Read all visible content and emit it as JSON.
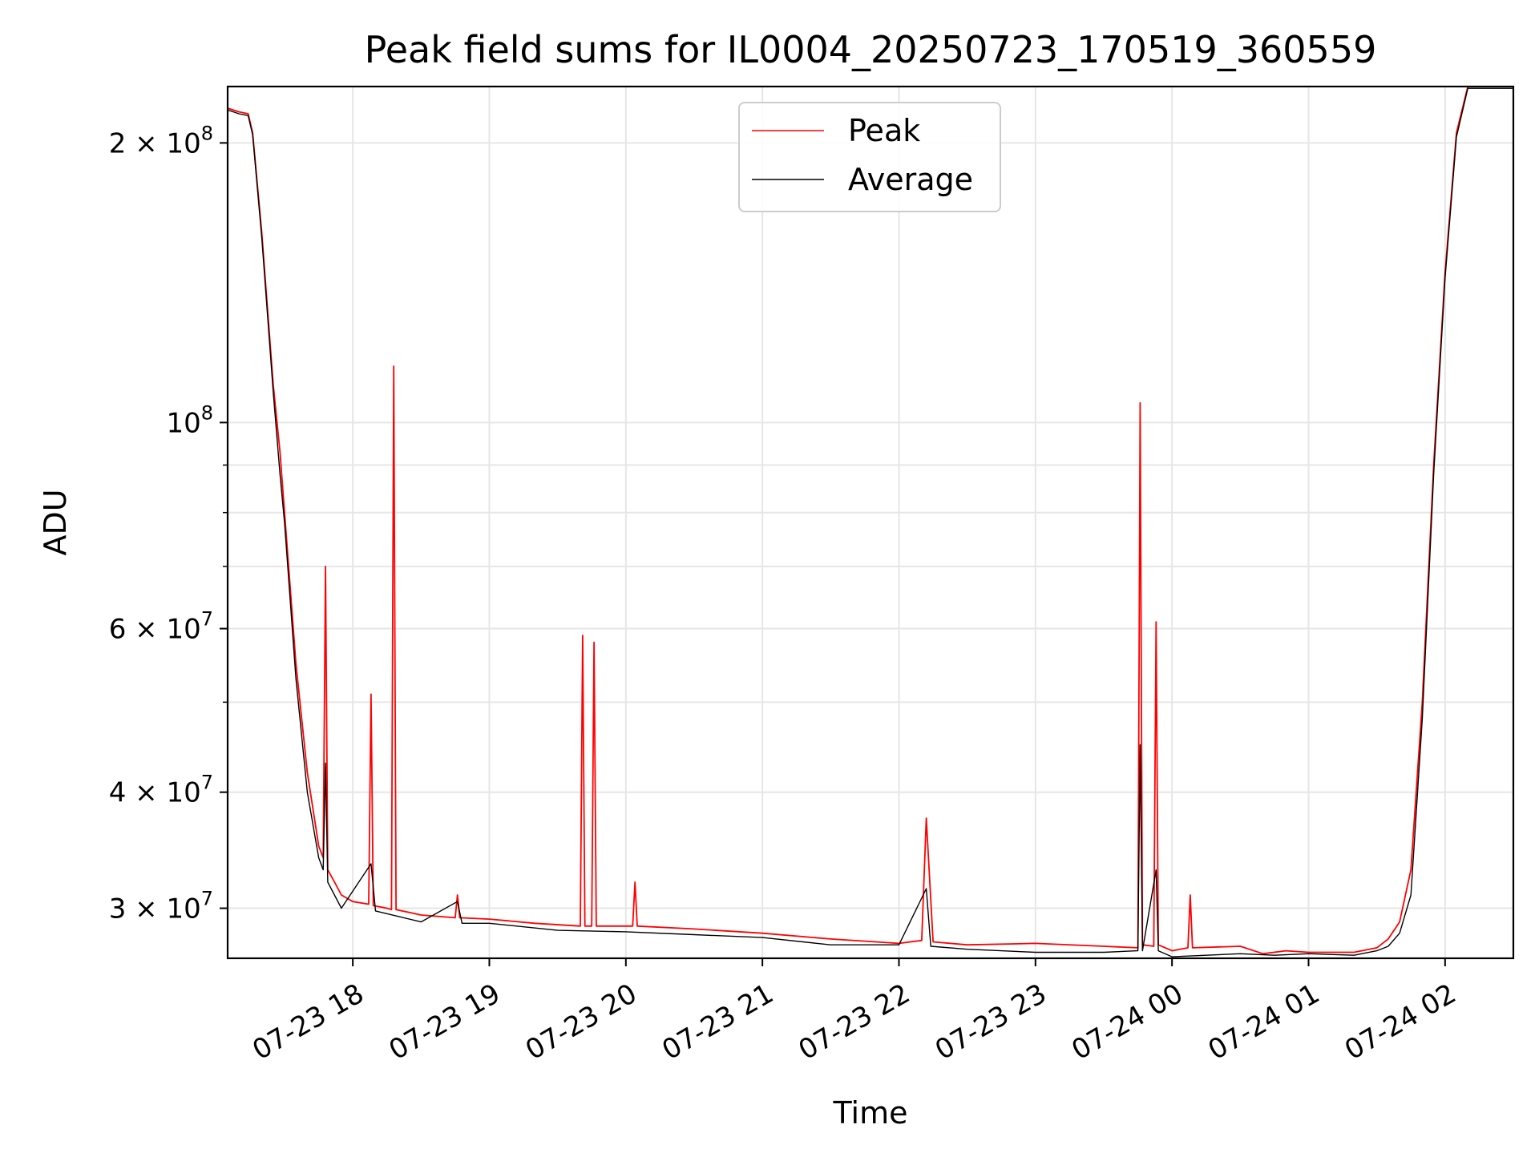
{
  "chart_data": {
    "type": "line",
    "title": "Peak field sums for IL0004_20250723_170519_360559",
    "xlabel": "Time",
    "ylabel": "ADU",
    "x_axis_type": "datetime",
    "y_scale": "log",
    "xlim": [
      "2025-07-23 17:05",
      "2025-07-24 02:30"
    ],
    "ylim": [
      26500000,
      230000000
    ],
    "grid": true,
    "legend": "upper center",
    "colors": {
      "peak": "#ff0000",
      "average": "#000000"
    },
    "x_ticks": [
      {
        "t": "2025-07-23 18:00",
        "label": "07-23 18"
      },
      {
        "t": "2025-07-23 19:00",
        "label": "07-23 19"
      },
      {
        "t": "2025-07-23 20:00",
        "label": "07-23 20"
      },
      {
        "t": "2025-07-23 21:00",
        "label": "07-23 21"
      },
      {
        "t": "2025-07-23 22:00",
        "label": "07-23 22"
      },
      {
        "t": "2025-07-23 23:00",
        "label": "07-23 23"
      },
      {
        "t": "2025-07-24 00:00",
        "label": "07-24 00"
      },
      {
        "t": "2025-07-24 01:00",
        "label": "07-24 01"
      },
      {
        "t": "2025-07-24 02:00",
        "label": "07-24 02"
      }
    ],
    "y_ticks_major": [
      {
        "v": 30000000,
        "mant": "3",
        "exp": "7"
      },
      {
        "v": 40000000,
        "mant": "4",
        "exp": "7"
      },
      {
        "v": 60000000,
        "mant": "6",
        "exp": "7"
      },
      {
        "v": 100000000,
        "mant": "",
        "exp": "8"
      },
      {
        "v": 200000000,
        "mant": "2",
        "exp": "8"
      }
    ],
    "y_ticks_minor": [
      50000000,
      70000000,
      80000000,
      90000000
    ],
    "series": [
      {
        "name": "Peak",
        "color": "#ff0000",
        "points": [
          [
            "2025-07-23 17:05",
            218000000
          ],
          [
            "2025-07-23 17:10",
            216000000
          ],
          [
            "2025-07-23 17:14",
            215000000
          ],
          [
            "2025-07-23 17:16",
            205000000
          ],
          [
            "2025-07-23 17:20",
            160000000
          ],
          [
            "2025-07-23 17:25",
            110000000
          ],
          [
            "2025-07-23 17:28",
            93000000
          ],
          [
            "2025-07-23 17:30",
            80000000
          ],
          [
            "2025-07-23 17:35",
            55000000
          ],
          [
            "2025-07-23 17:40",
            42000000
          ],
          [
            "2025-07-23 17:45",
            35000000
          ],
          [
            "2025-07-23 17:47",
            34000000
          ],
          [
            "2025-07-23 17:48",
            70000000
          ],
          [
            "2025-07-23 17:49",
            33000000
          ],
          [
            "2025-07-23 17:52",
            32000000
          ],
          [
            "2025-07-23 17:55",
            31000000
          ],
          [
            "2025-07-23 18:00",
            30500000
          ],
          [
            "2025-07-23 18:07",
            30300000
          ],
          [
            "2025-07-23 18:08",
            51000000
          ],
          [
            "2025-07-23 18:09",
            30200000
          ],
          [
            "2025-07-23 18:15",
            30000000
          ],
          [
            "2025-07-23 18:17",
            29900000
          ],
          [
            "2025-07-23 18:18",
            115000000
          ],
          [
            "2025-07-23 18:19",
            29900000
          ],
          [
            "2025-07-23 18:30",
            29500000
          ],
          [
            "2025-07-23 18:45",
            29300000
          ],
          [
            "2025-07-23 18:46",
            31000000
          ],
          [
            "2025-07-23 18:47",
            29300000
          ],
          [
            "2025-07-23 19:00",
            29200000
          ],
          [
            "2025-07-23 19:20",
            28900000
          ],
          [
            "2025-07-23 19:40",
            28700000
          ],
          [
            "2025-07-23 19:41",
            59000000
          ],
          [
            "2025-07-23 19:42",
            28700000
          ],
          [
            "2025-07-23 19:45",
            28700000
          ],
          [
            "2025-07-23 19:46",
            58000000
          ],
          [
            "2025-07-23 19:47",
            28700000
          ],
          [
            "2025-07-23 20:03",
            28700000
          ],
          [
            "2025-07-23 20:04",
            32000000
          ],
          [
            "2025-07-23 20:05",
            28700000
          ],
          [
            "2025-07-23 20:30",
            28500000
          ],
          [
            "2025-07-23 21:00",
            28200000
          ],
          [
            "2025-07-23 21:30",
            27800000
          ],
          [
            "2025-07-23 22:00",
            27500000
          ],
          [
            "2025-07-23 22:10",
            27700000
          ],
          [
            "2025-07-23 22:12",
            37500000
          ],
          [
            "2025-07-23 22:15",
            27600000
          ],
          [
            "2025-07-23 22:30",
            27400000
          ],
          [
            "2025-07-23 23:00",
            27500000
          ],
          [
            "2025-07-23 23:30",
            27300000
          ],
          [
            "2025-07-23 23:45",
            27200000
          ],
          [
            "2025-07-23 23:46",
            105000000
          ],
          [
            "2025-07-23 23:47",
            27400000
          ],
          [
            "2025-07-23 23:52",
            27300000
          ],
          [
            "2025-07-23 23:53",
            61000000
          ],
          [
            "2025-07-23 23:54",
            27400000
          ],
          [
            "2025-07-24 00:00",
            27000000
          ],
          [
            "2025-07-24 00:07",
            27200000
          ],
          [
            "2025-07-24 00:08",
            31000000
          ],
          [
            "2025-07-24 00:09",
            27200000
          ],
          [
            "2025-07-24 00:30",
            27300000
          ],
          [
            "2025-07-24 00:40",
            26800000
          ],
          [
            "2025-07-24 00:50",
            27000000
          ],
          [
            "2025-07-24 01:00",
            26900000
          ],
          [
            "2025-07-24 01:20",
            26900000
          ],
          [
            "2025-07-24 01:30",
            27200000
          ],
          [
            "2025-07-24 01:35",
            27800000
          ],
          [
            "2025-07-24 01:40",
            29000000
          ],
          [
            "2025-07-24 01:45",
            33000000
          ],
          [
            "2025-07-24 01:50",
            50000000
          ],
          [
            "2025-07-24 01:55",
            90000000
          ],
          [
            "2025-07-24 02:00",
            145000000
          ],
          [
            "2025-07-24 02:05",
            205000000
          ],
          [
            "2025-07-24 02:10",
            230000000
          ],
          [
            "2025-07-24 02:30",
            230000000
          ]
        ]
      },
      {
        "name": "Average",
        "color": "#000000",
        "points": [
          [
            "2025-07-23 17:05",
            217000000
          ],
          [
            "2025-07-23 17:10",
            215000000
          ],
          [
            "2025-07-23 17:14",
            214000000
          ],
          [
            "2025-07-23 17:16",
            204000000
          ],
          [
            "2025-07-23 17:20",
            158000000
          ],
          [
            "2025-07-23 17:25",
            108000000
          ],
          [
            "2025-07-23 17:28",
            88000000
          ],
          [
            "2025-07-23 17:30",
            78000000
          ],
          [
            "2025-07-23 17:35",
            53000000
          ],
          [
            "2025-07-23 17:40",
            40000000
          ],
          [
            "2025-07-23 17:45",
            34000000
          ],
          [
            "2025-07-23 17:47",
            33000000
          ],
          [
            "2025-07-23 17:48",
            43000000
          ],
          [
            "2025-07-23 17:49",
            32000000
          ],
          [
            "2025-07-23 17:55",
            30000000
          ],
          [
            "2025-07-23 18:08",
            33500000
          ],
          [
            "2025-07-23 18:10",
            29800000
          ],
          [
            "2025-07-23 18:30",
            29000000
          ],
          [
            "2025-07-23 18:46",
            30500000
          ],
          [
            "2025-07-23 18:48",
            28900000
          ],
          [
            "2025-07-23 19:00",
            28900000
          ],
          [
            "2025-07-23 19:30",
            28400000
          ],
          [
            "2025-07-23 20:00",
            28300000
          ],
          [
            "2025-07-23 20:30",
            28100000
          ],
          [
            "2025-07-23 21:00",
            27900000
          ],
          [
            "2025-07-23 21:30",
            27400000
          ],
          [
            "2025-07-23 22:00",
            27400000
          ],
          [
            "2025-07-23 22:12",
            31500000
          ],
          [
            "2025-07-23 22:14",
            27300000
          ],
          [
            "2025-07-23 22:30",
            27100000
          ],
          [
            "2025-07-23 23:00",
            26900000
          ],
          [
            "2025-07-23 23:30",
            26900000
          ],
          [
            "2025-07-23 23:45",
            27000000
          ],
          [
            "2025-07-23 23:46",
            45000000
          ],
          [
            "2025-07-23 23:47",
            27000000
          ],
          [
            "2025-07-23 23:53",
            33000000
          ],
          [
            "2025-07-23 23:54",
            27000000
          ],
          [
            "2025-07-24 00:00",
            26600000
          ],
          [
            "2025-07-24 00:30",
            26800000
          ],
          [
            "2025-07-24 00:45",
            26700000
          ],
          [
            "2025-07-24 01:00",
            26800000
          ],
          [
            "2025-07-24 01:20",
            26700000
          ],
          [
            "2025-07-24 01:30",
            27000000
          ],
          [
            "2025-07-24 01:35",
            27300000
          ],
          [
            "2025-07-24 01:40",
            28200000
          ],
          [
            "2025-07-24 01:45",
            31000000
          ],
          [
            "2025-07-24 01:50",
            48000000
          ],
          [
            "2025-07-24 01:55",
            88000000
          ],
          [
            "2025-07-24 02:00",
            143000000
          ],
          [
            "2025-07-24 02:05",
            203000000
          ],
          [
            "2025-07-24 02:10",
            229000000
          ],
          [
            "2025-07-24 02:30",
            229000000
          ]
        ]
      }
    ]
  }
}
